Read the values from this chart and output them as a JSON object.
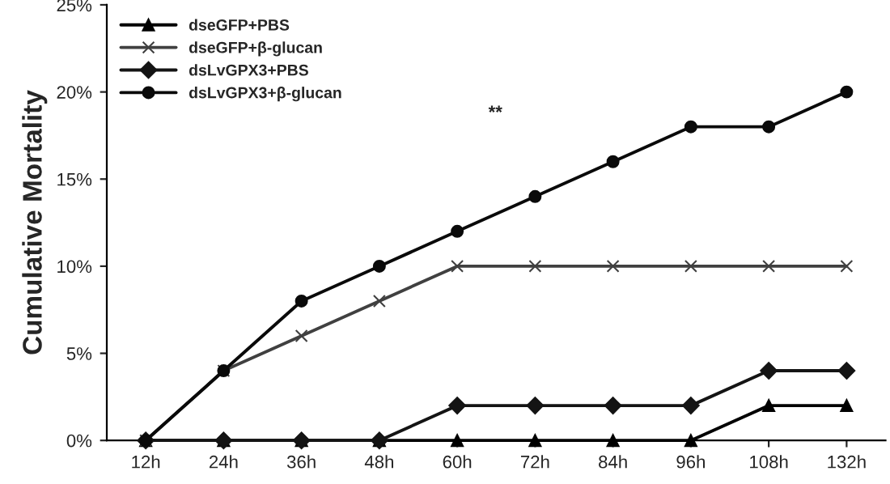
{
  "chart_data": {
    "type": "line",
    "ylabel": "Cumulative Mortality",
    "categories": [
      "12h",
      "24h",
      "36h",
      "48h",
      "60h",
      "72h",
      "84h",
      "96h",
      "108h",
      "132h"
    ],
    "series": [
      {
        "name": "dseGFP+PBS",
        "color": "#000000",
        "marker": "triangle",
        "values": [
          0,
          0,
          0,
          0,
          0,
          0,
          0,
          0,
          2,
          2
        ]
      },
      {
        "name": "dseGFP+β-glucan",
        "color": "#404040",
        "marker": "cross",
        "values": [
          0,
          4,
          6,
          8,
          10,
          10,
          10,
          10,
          10,
          10
        ]
      },
      {
        "name": "dsLvGPX3+PBS",
        "color": "#141414",
        "marker": "diamond",
        "values": [
          0,
          0,
          0,
          0,
          2,
          2,
          2,
          2,
          4,
          4
        ]
      },
      {
        "name": "dsLvGPX3+β-glucan",
        "color": "#0a0a0a",
        "marker": "circle",
        "values": [
          0,
          4,
          8,
          10,
          12,
          14,
          16,
          18,
          18,
          20
        ]
      }
    ],
    "ylim": [
      0,
      25
    ],
    "yticks": [
      {
        "value": 0,
        "label": "0%"
      },
      {
        "value": 5,
        "label": "5%"
      },
      {
        "value": 10,
        "label": "10%"
      },
      {
        "value": 15,
        "label": "15%"
      },
      {
        "value": 20,
        "label": "20%"
      },
      {
        "value": 25,
        "label": "25%"
      }
    ],
    "annotations": [
      "**"
    ],
    "legend": "top left",
    "grid": false,
    "line_style": "solid"
  }
}
